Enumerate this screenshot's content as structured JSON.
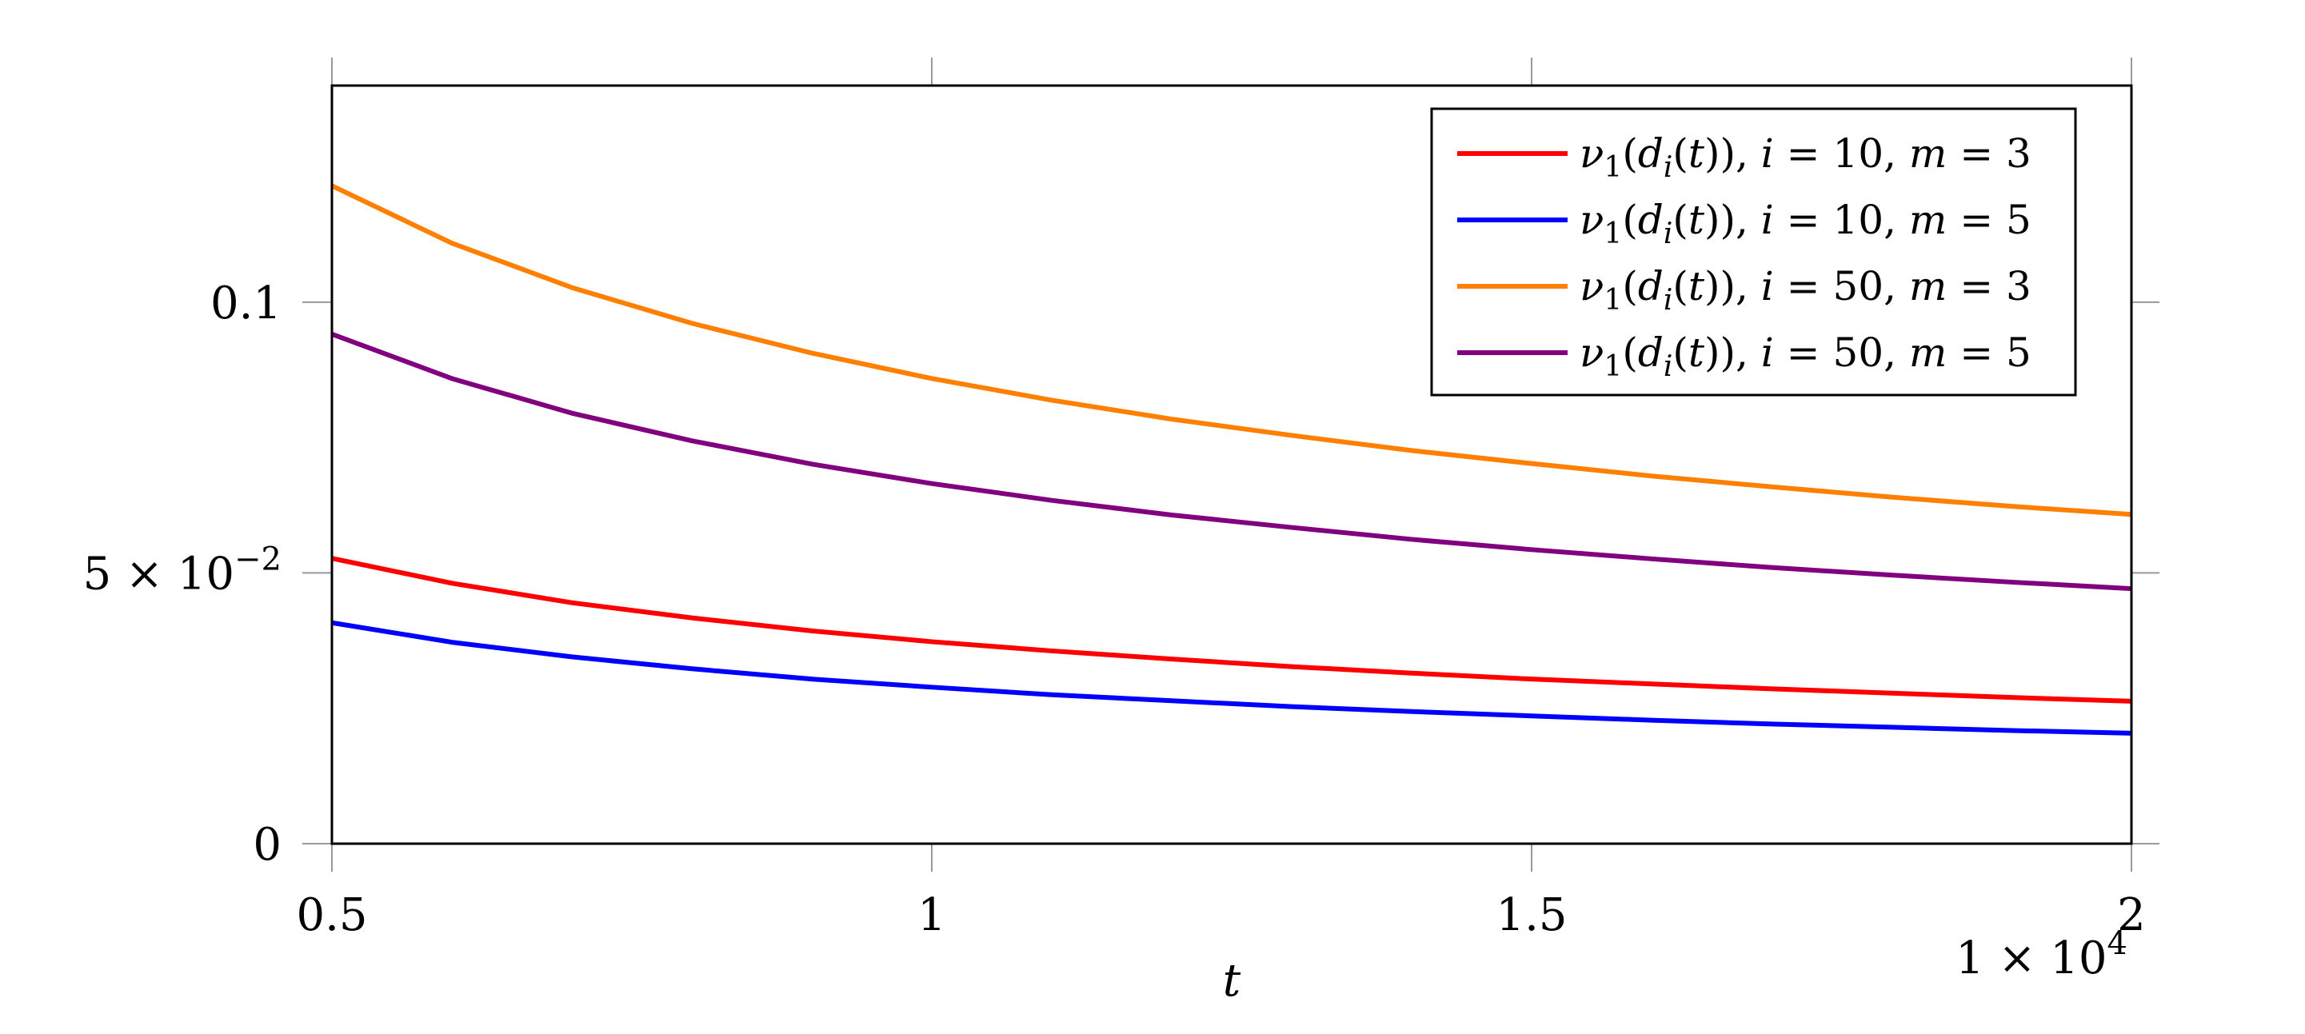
{
  "chart_data": {
    "type": "line",
    "title": "",
    "xlabel": "t",
    "ylabel": "",
    "xlim": [
      5000,
      20000
    ],
    "ylim": [
      0,
      0.14
    ],
    "x_ticks": [
      5000,
      10000,
      15000,
      20000
    ],
    "x_tick_labels": [
      "0.5",
      "1",
      "1.5",
      "2"
    ],
    "x_multiplier": {
      "base": "1 × 10",
      "exponent": "4"
    },
    "y_ticks": [
      0,
      0.05,
      0.1
    ],
    "y_tick_labels": [
      {
        "base": "0",
        "exponent": ""
      },
      {
        "base": "5 × 10",
        "exponent": "−2"
      },
      {
        "base": "0.1",
        "exponent": ""
      }
    ],
    "grid": false,
    "legend_position": "top-right",
    "series": [
      {
        "name": "ν1(di(t)), i = 10, m = 3",
        "legend": {
          "nu": "ν",
          "one": "1",
          "d": "d",
          "i": "i",
          "tvar": "t",
          "ivar": "i",
          "ival": "10",
          "mvar": "m",
          "mval": "3"
        },
        "color": "#ff0000",
        "x": [
          5000,
          6000,
          7000,
          8000,
          9000,
          10000,
          11000,
          12000,
          13000,
          14000,
          15000,
          16000,
          17000,
          18000,
          19000,
          20000
        ],
        "y": [
          0.0527,
          0.0481,
          0.0445,
          0.0417,
          0.0393,
          0.0373,
          0.0356,
          0.0341,
          0.0327,
          0.0315,
          0.0304,
          0.0295,
          0.0286,
          0.0278,
          0.027,
          0.0263
        ]
      },
      {
        "name": "ν1(di(t)), i = 10, m = 5",
        "legend": {
          "nu": "ν",
          "one": "1",
          "d": "d",
          "i": "i",
          "tvar": "t",
          "ivar": "i",
          "ival": "10",
          "mvar": "m",
          "mval": "5"
        },
        "color": "#0000ff",
        "x": [
          5000,
          6000,
          7000,
          8000,
          9000,
          10000,
          11000,
          12000,
          13000,
          14000,
          15000,
          16000,
          17000,
          18000,
          19000,
          20000
        ],
        "y": [
          0.0408,
          0.0372,
          0.0345,
          0.0323,
          0.0304,
          0.0289,
          0.0275,
          0.0264,
          0.0253,
          0.0244,
          0.0236,
          0.0228,
          0.0221,
          0.0215,
          0.0209,
          0.0204
        ]
      },
      {
        "name": "ν1(di(t)), i = 50, m = 3",
        "legend": {
          "nu": "ν",
          "one": "1",
          "d": "d",
          "i": "i",
          "tvar": "t",
          "ivar": "i",
          "ival": "50",
          "mvar": "m",
          "mval": "3"
        },
        "color": "#ff8000",
        "x": [
          5000,
          6000,
          7000,
          8000,
          9000,
          10000,
          11000,
          12000,
          13000,
          14000,
          15000,
          16000,
          17000,
          18000,
          19000,
          20000
        ],
        "y": [
          0.1215,
          0.1109,
          0.1027,
          0.0961,
          0.0906,
          0.0859,
          0.0819,
          0.0784,
          0.0754,
          0.0726,
          0.0702,
          0.0679,
          0.0659,
          0.064,
          0.0623,
          0.0608
        ]
      },
      {
        "name": "ν1(di(t)), i = 50, m = 5",
        "legend": {
          "nu": "ν",
          "one": "1",
          "d": "d",
          "i": "i",
          "tvar": "t",
          "ivar": "i",
          "ival": "50",
          "mvar": "m",
          "mval": "5"
        },
        "color": "#800080",
        "x": [
          5000,
          6000,
          7000,
          8000,
          9000,
          10000,
          11000,
          12000,
          13000,
          14000,
          15000,
          16000,
          17000,
          18000,
          19000,
          20000
        ],
        "y": [
          0.0941,
          0.0859,
          0.0795,
          0.0744,
          0.0701,
          0.0665,
          0.0634,
          0.0607,
          0.0584,
          0.0562,
          0.0543,
          0.0526,
          0.051,
          0.0496,
          0.0483,
          0.0471
        ]
      }
    ]
  }
}
